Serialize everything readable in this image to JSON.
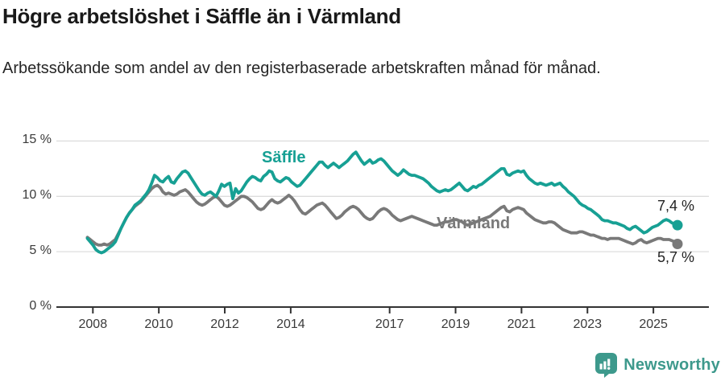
{
  "header": {
    "title": "Högre arbetslöshet i Säffle än i Värmland",
    "subtitle": "Arbetssökande som andel av den registerbaserade arbetskraften månad för månad."
  },
  "colors": {
    "saffle": "#17a094",
    "varmland": "#797979",
    "grid": "#dddddd",
    "axis": "#333333",
    "tick_text": "#3a3a3a",
    "logo": "#3d998c"
  },
  "chart_data": {
    "type": "line",
    "unit": "%",
    "x_start": "2008-01",
    "x_end": "2025-08",
    "interval": "monthly",
    "ylim": [
      0,
      15
    ],
    "grid": "horizontal",
    "y_ticks": [
      {
        "value": 15,
        "label": "15 %"
      },
      {
        "value": 10,
        "label": "10 %"
      },
      {
        "value": 5,
        "label": "5 %"
      },
      {
        "value": 0,
        "label": "0 %"
      }
    ],
    "x_ticks": [
      {
        "year": 2008,
        "label": "2008"
      },
      {
        "year": 2010,
        "label": "2010"
      },
      {
        "year": 2012,
        "label": "2012"
      },
      {
        "year": 2014,
        "label": "2014"
      },
      {
        "year": 2017,
        "label": "2017"
      },
      {
        "year": 2019,
        "label": "2019"
      },
      {
        "year": 2021,
        "label": "2021"
      },
      {
        "year": 2023,
        "label": "2023"
      },
      {
        "year": 2025,
        "label": "2025"
      }
    ],
    "series": [
      {
        "name": "Säffle",
        "color": "#17a094",
        "end_label": "7,4 %",
        "end_value": 7.4,
        "values": [
          6.2,
          5.9,
          5.6,
          5.2,
          5.0,
          4.9,
          5.0,
          5.2,
          5.4,
          5.6,
          5.9,
          6.5,
          7.1,
          7.6,
          8.1,
          8.5,
          8.8,
          9.2,
          9.4,
          9.6,
          9.9,
          10.2,
          10.6,
          11.2,
          11.9,
          11.7,
          11.4,
          11.3,
          11.6,
          11.8,
          11.3,
          11.2,
          11.6,
          11.9,
          12.2,
          12.3,
          12.1,
          11.7,
          11.3,
          10.9,
          10.5,
          10.2,
          10.1,
          10.3,
          10.4,
          10.2,
          10.0,
          10.5,
          11.1,
          10.9,
          11.1,
          11.2,
          9.8,
          10.7,
          10.3,
          10.5,
          10.9,
          11.3,
          11.6,
          11.8,
          11.7,
          11.5,
          11.4,
          11.8,
          12.0,
          12.3,
          12.2,
          11.6,
          11.4,
          11.3,
          11.5,
          11.7,
          11.6,
          11.3,
          11.1,
          10.9,
          11.0,
          11.3,
          11.6,
          11.9,
          12.2,
          12.5,
          12.8,
          13.1,
          13.1,
          12.8,
          12.6,
          12.8,
          13.0,
          12.8,
          12.6,
          12.8,
          13.0,
          13.2,
          13.5,
          13.8,
          14.0,
          13.6,
          13.2,
          12.9,
          13.1,
          13.3,
          13.0,
          13.1,
          13.3,
          13.4,
          13.2,
          12.9,
          12.6,
          12.3,
          12.1,
          11.9,
          12.1,
          12.4,
          12.2,
          12.0,
          11.9,
          11.9,
          11.8,
          11.7,
          11.6,
          11.4,
          11.2,
          10.9,
          10.7,
          10.5,
          10.4,
          10.5,
          10.6,
          10.5,
          10.6,
          10.8,
          11.0,
          11.2,
          10.9,
          10.6,
          10.5,
          10.7,
          10.9,
          10.8,
          11.0,
          11.1,
          11.3,
          11.5,
          11.7,
          11.9,
          12.1,
          12.3,
          12.5,
          12.5,
          12.0,
          11.9,
          12.1,
          12.2,
          12.3,
          12.2,
          12.3,
          11.9,
          11.6,
          11.4,
          11.2,
          11.1,
          11.2,
          11.1,
          11.0,
          11.1,
          11.2,
          11.0,
          11.1,
          11.2,
          10.9,
          10.7,
          10.4,
          10.2,
          10.0,
          9.7,
          9.4,
          9.2,
          9.1,
          8.9,
          8.8,
          8.6,
          8.4,
          8.2,
          7.9,
          7.8,
          7.8,
          7.7,
          7.6,
          7.6,
          7.5,
          7.4,
          7.3,
          7.1,
          7.0,
          7.2,
          7.3,
          7.1,
          6.9,
          6.7,
          6.8,
          7.0,
          7.2,
          7.3,
          7.4,
          7.6,
          7.8,
          7.9,
          7.8,
          7.6,
          7.5,
          7.4
        ]
      },
      {
        "name": "Värmland",
        "color": "#797979",
        "end_label": "5,7 %",
        "end_value": 5.7,
        "values": [
          6.3,
          6.1,
          5.9,
          5.7,
          5.6,
          5.6,
          5.7,
          5.6,
          5.7,
          5.9,
          6.1,
          6.6,
          7.1,
          7.6,
          8.1,
          8.5,
          8.8,
          9.1,
          9.3,
          9.5,
          9.8,
          10.1,
          10.4,
          10.7,
          10.9,
          11.0,
          10.8,
          10.4,
          10.2,
          10.3,
          10.2,
          10.1,
          10.2,
          10.4,
          10.5,
          10.6,
          10.4,
          10.1,
          9.8,
          9.5,
          9.3,
          9.2,
          9.3,
          9.5,
          9.7,
          9.9,
          10.0,
          9.8,
          9.5,
          9.2,
          9.1,
          9.2,
          9.4,
          9.6,
          9.8,
          10.0,
          10.0,
          9.9,
          9.7,
          9.5,
          9.2,
          8.9,
          8.8,
          8.9,
          9.2,
          9.5,
          9.7,
          9.5,
          9.4,
          9.5,
          9.7,
          9.9,
          10.1,
          9.9,
          9.6,
          9.2,
          8.8,
          8.5,
          8.4,
          8.6,
          8.8,
          9.0,
          9.2,
          9.3,
          9.4,
          9.2,
          8.9,
          8.6,
          8.3,
          8.0,
          8.1,
          8.3,
          8.6,
          8.8,
          9.0,
          9.1,
          9.0,
          8.8,
          8.5,
          8.2,
          8.0,
          7.9,
          8.0,
          8.3,
          8.6,
          8.8,
          8.9,
          8.8,
          8.6,
          8.3,
          8.1,
          7.9,
          7.8,
          7.9,
          8.0,
          8.1,
          8.2,
          8.1,
          8.0,
          7.9,
          7.8,
          7.7,
          7.6,
          7.5,
          7.4,
          7.4,
          7.5,
          7.6,
          7.7,
          7.7,
          7.8,
          7.9,
          7.9,
          7.8,
          7.7,
          7.5,
          7.4,
          7.5,
          7.6,
          7.7,
          7.8,
          7.9,
          8.0,
          8.1,
          8.2,
          8.4,
          8.6,
          8.8,
          9.0,
          9.1,
          8.7,
          8.6,
          8.8,
          8.9,
          9.0,
          8.9,
          8.8,
          8.5,
          8.3,
          8.1,
          7.9,
          7.8,
          7.7,
          7.6,
          7.6,
          7.7,
          7.7,
          7.6,
          7.4,
          7.2,
          7.0,
          6.9,
          6.8,
          6.7,
          6.7,
          6.7,
          6.8,
          6.8,
          6.7,
          6.6,
          6.5,
          6.5,
          6.4,
          6.3,
          6.2,
          6.2,
          6.1,
          6.2,
          6.2,
          6.2,
          6.2,
          6.1,
          6.0,
          5.9,
          5.8,
          5.7,
          5.8,
          6.0,
          6.1,
          5.9,
          5.8,
          5.9,
          6.0,
          6.1,
          6.2,
          6.2,
          6.1,
          6.1,
          6.1,
          6.0,
          5.9,
          5.7
        ]
      }
    ]
  },
  "footer": {
    "brand": "Newsworthy"
  }
}
